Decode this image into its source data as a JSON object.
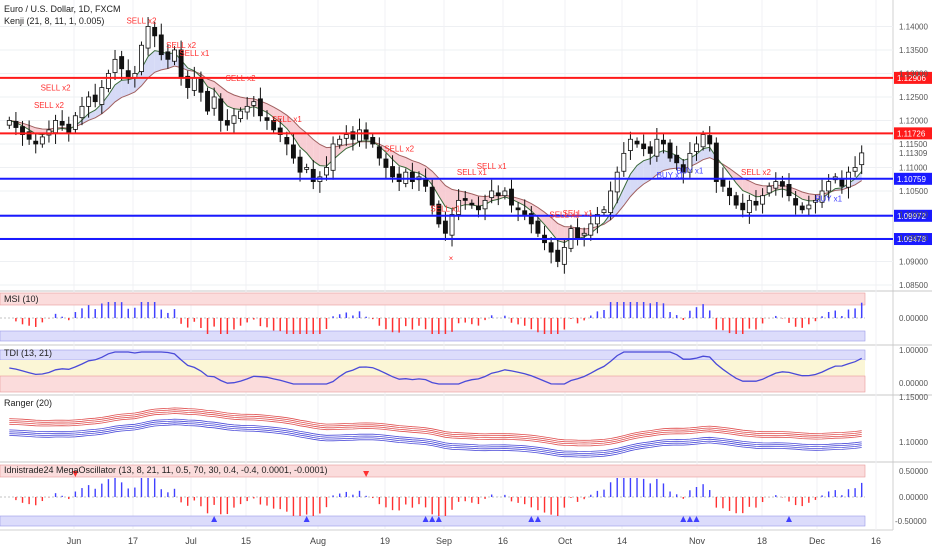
{
  "header": {
    "symbol": "Euro / U.S. Dollar, 1D, FXCM",
    "indicator": "Kenji (21, 8, 11, 1, 0.005)"
  },
  "panes": {
    "msi": "MSI (10)",
    "tdi": "TDI (13, 21)",
    "ranger": "Ranger (20)",
    "osc": "Idnistrade24 MegaOscillator (13, 8, 21, 11, 0.5, 70, 30, 0.4, -0.4, 0.0001, -0.0001)"
  },
  "colors": {
    "red_line": "#ff1a1a",
    "blue_line": "#1a1aff",
    "up_candle": "#ffffff",
    "down_candle": "#111111",
    "ribbon_red": "#f7c6cc",
    "ribbon_blue": "#cfd3f5",
    "sell": "#ff3030",
    "buy": "#4040ff"
  },
  "chart_data": {
    "type": "candlestick",
    "x_ticks": [
      "Jun",
      "17",
      "Jul",
      "15",
      "Aug",
      "19",
      "Sep",
      "16",
      "Oct",
      "14",
      "Nov",
      "18",
      "Dec",
      "16"
    ],
    "y_ticks": [
      "1.14000",
      "1.13500",
      "1.13000",
      "1.12500",
      "1.12000",
      "1.11500",
      "1.11000",
      "1.10500",
      "1.10000",
      "1.09500",
      "1.09000",
      "1.08500"
    ],
    "ylim": [
      1.085,
      1.1435
    ],
    "last_price": "1.11309",
    "horizontal_levels": [
      {
        "value": 1.12906,
        "label": "1.12906",
        "color": "red"
      },
      {
        "value": 1.11726,
        "label": "1.11726",
        "color": "red"
      },
      {
        "value": 1.10759,
        "label": "1.10759",
        "color": "blue"
      },
      {
        "value": 1.09972,
        "label": "1.09972",
        "color": "blue"
      },
      {
        "value": 1.09478,
        "label": "1.09478",
        "color": "blue"
      }
    ],
    "closes": [
      1.12,
      1.1185,
      1.117,
      1.116,
      1.115,
      1.1165,
      1.118,
      1.12,
      1.119,
      1.1175,
      1.121,
      1.123,
      1.125,
      1.124,
      1.127,
      1.13,
      1.133,
      1.131,
      1.129,
      1.13,
      1.136,
      1.14,
      1.138,
      1.134,
      1.133,
      1.135,
      1.129,
      1.127,
      1.129,
      1.126,
      1.122,
      1.125,
      1.12,
      1.119,
      1.121,
      1.122,
      1.123,
      1.124,
      1.121,
      1.12,
      1.118,
      1.117,
      1.115,
      1.112,
      1.109,
      1.11,
      1.107,
      1.108,
      1.11,
      1.115,
      1.116,
      1.117,
      1.116,
      1.118,
      1.116,
      1.115,
      1.112,
      1.11,
      1.108,
      1.107,
      1.109,
      1.107,
      1.108,
      1.106,
      1.102,
      1.098,
      1.096,
      1.1,
      1.103,
      1.103,
      1.102,
      1.101,
      1.103,
      1.105,
      1.104,
      1.105,
      1.102,
      1.101,
      1.1,
      1.098,
      1.096,
      1.094,
      1.092,
      1.09,
      1.093,
      1.097,
      1.095,
      1.096,
      1.098,
      1.1,
      1.101,
      1.105,
      1.109,
      1.113,
      1.116,
      1.115,
      1.114,
      1.113,
      1.116,
      1.115,
      1.112,
      1.111,
      1.109,
      1.113,
      1.115,
      1.117,
      1.115,
      1.107,
      1.106,
      1.104,
      1.102,
      1.101,
      1.103,
      1.102,
      1.104,
      1.106,
      1.107,
      1.106,
      1.104,
      1.102,
      1.101,
      1.102,
      1.103,
      1.105,
      1.107,
      1.108,
      1.106,
      1.109,
      1.11,
      1.1131
    ],
    "signals": [
      {
        "text": "SELL x2",
        "type": "sell",
        "bar": 6
      },
      {
        "text": "SELL x2",
        "type": "sell",
        "bar": 7
      },
      {
        "text": "SELL x2",
        "type": "sell",
        "bar": 20
      },
      {
        "text": "SELL x2",
        "type": "sell",
        "bar": 26
      },
      {
        "text": "SELL x1",
        "type": "sell",
        "bar": 28
      },
      {
        "text": "SELL x2",
        "type": "sell",
        "bar": 35
      },
      {
        "text": "SELL x1",
        "type": "sell",
        "bar": 42
      },
      {
        "text": "SELL x2",
        "type": "sell",
        "bar": 59
      },
      {
        "text": "SELL x1",
        "type": "sell",
        "bar": 66
      },
      {
        "text": "SELL x1",
        "type": "sell",
        "bar": 70
      },
      {
        "text": "SELL x1",
        "type": "sell",
        "bar": 73
      },
      {
        "text": "SELL x1",
        "type": "sell",
        "bar": 84
      },
      {
        "text": "SELL x1",
        "type": "sell",
        "bar": 86
      },
      {
        "text": "BUY x1",
        "type": "buy",
        "bar": 100
      },
      {
        "text": "BUY x1",
        "type": "buy",
        "bar": 103
      },
      {
        "text": "SELL x2",
        "type": "sell",
        "bar": 113
      },
      {
        "text": "BUY x1",
        "type": "buy",
        "bar": 124
      }
    ]
  }
}
